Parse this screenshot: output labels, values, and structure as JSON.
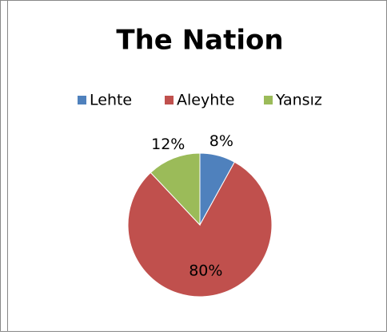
{
  "chart_data": {
    "type": "pie",
    "title": "The Nation",
    "categories": [
      "Lehte",
      "Aleyhte",
      "Yansız"
    ],
    "values": [
      8,
      80,
      12
    ],
    "value_labels": [
      "8%",
      "80%",
      "12%"
    ],
    "colors": [
      "#4f81bd",
      "#c0504d",
      "#9bbb59"
    ],
    "legend": "top"
  }
}
